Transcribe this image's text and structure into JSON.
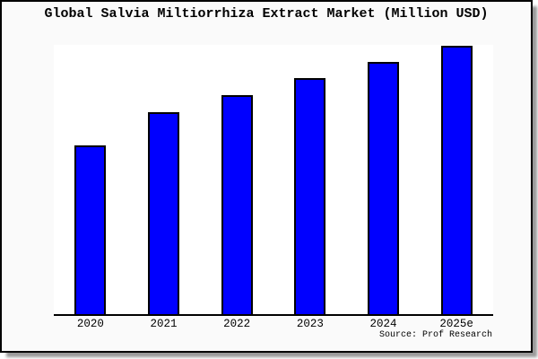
{
  "title": "Global Salvia Miltiorrhiza Extract Market (Million USD)",
  "source_credit": "Source: Prof Research",
  "colors": {
    "bar_fill": "#0000ff",
    "bar_edge": "#000000",
    "figure_background": "#fafafa",
    "plot_background": "#ffffff",
    "frame_border": "#000000",
    "shadow": "#999999",
    "text": "#000000"
  },
  "chart_data": {
    "type": "bar",
    "title": "Global Salvia Miltiorrhiza Extract Market (Million USD)",
    "categories": [
      "2020",
      "2021",
      "2022",
      "2023",
      "2024",
      "2025e"
    ],
    "values": [
      62.7,
      75.0,
      81.3,
      87.7,
      93.6,
      99.7
    ],
    "xlabel": "",
    "ylabel": "",
    "ylim": [
      0,
      100
    ],
    "grid": false,
    "legend": false,
    "y_axis_labels_visible": false,
    "visible_spines": [
      "bottom"
    ],
    "annotation": "Source: Prof Research",
    "note": "No y-axis ticks or labels are rendered; values are estimated from bar pixel heights, normalized so the plot-area top equals 100."
  }
}
